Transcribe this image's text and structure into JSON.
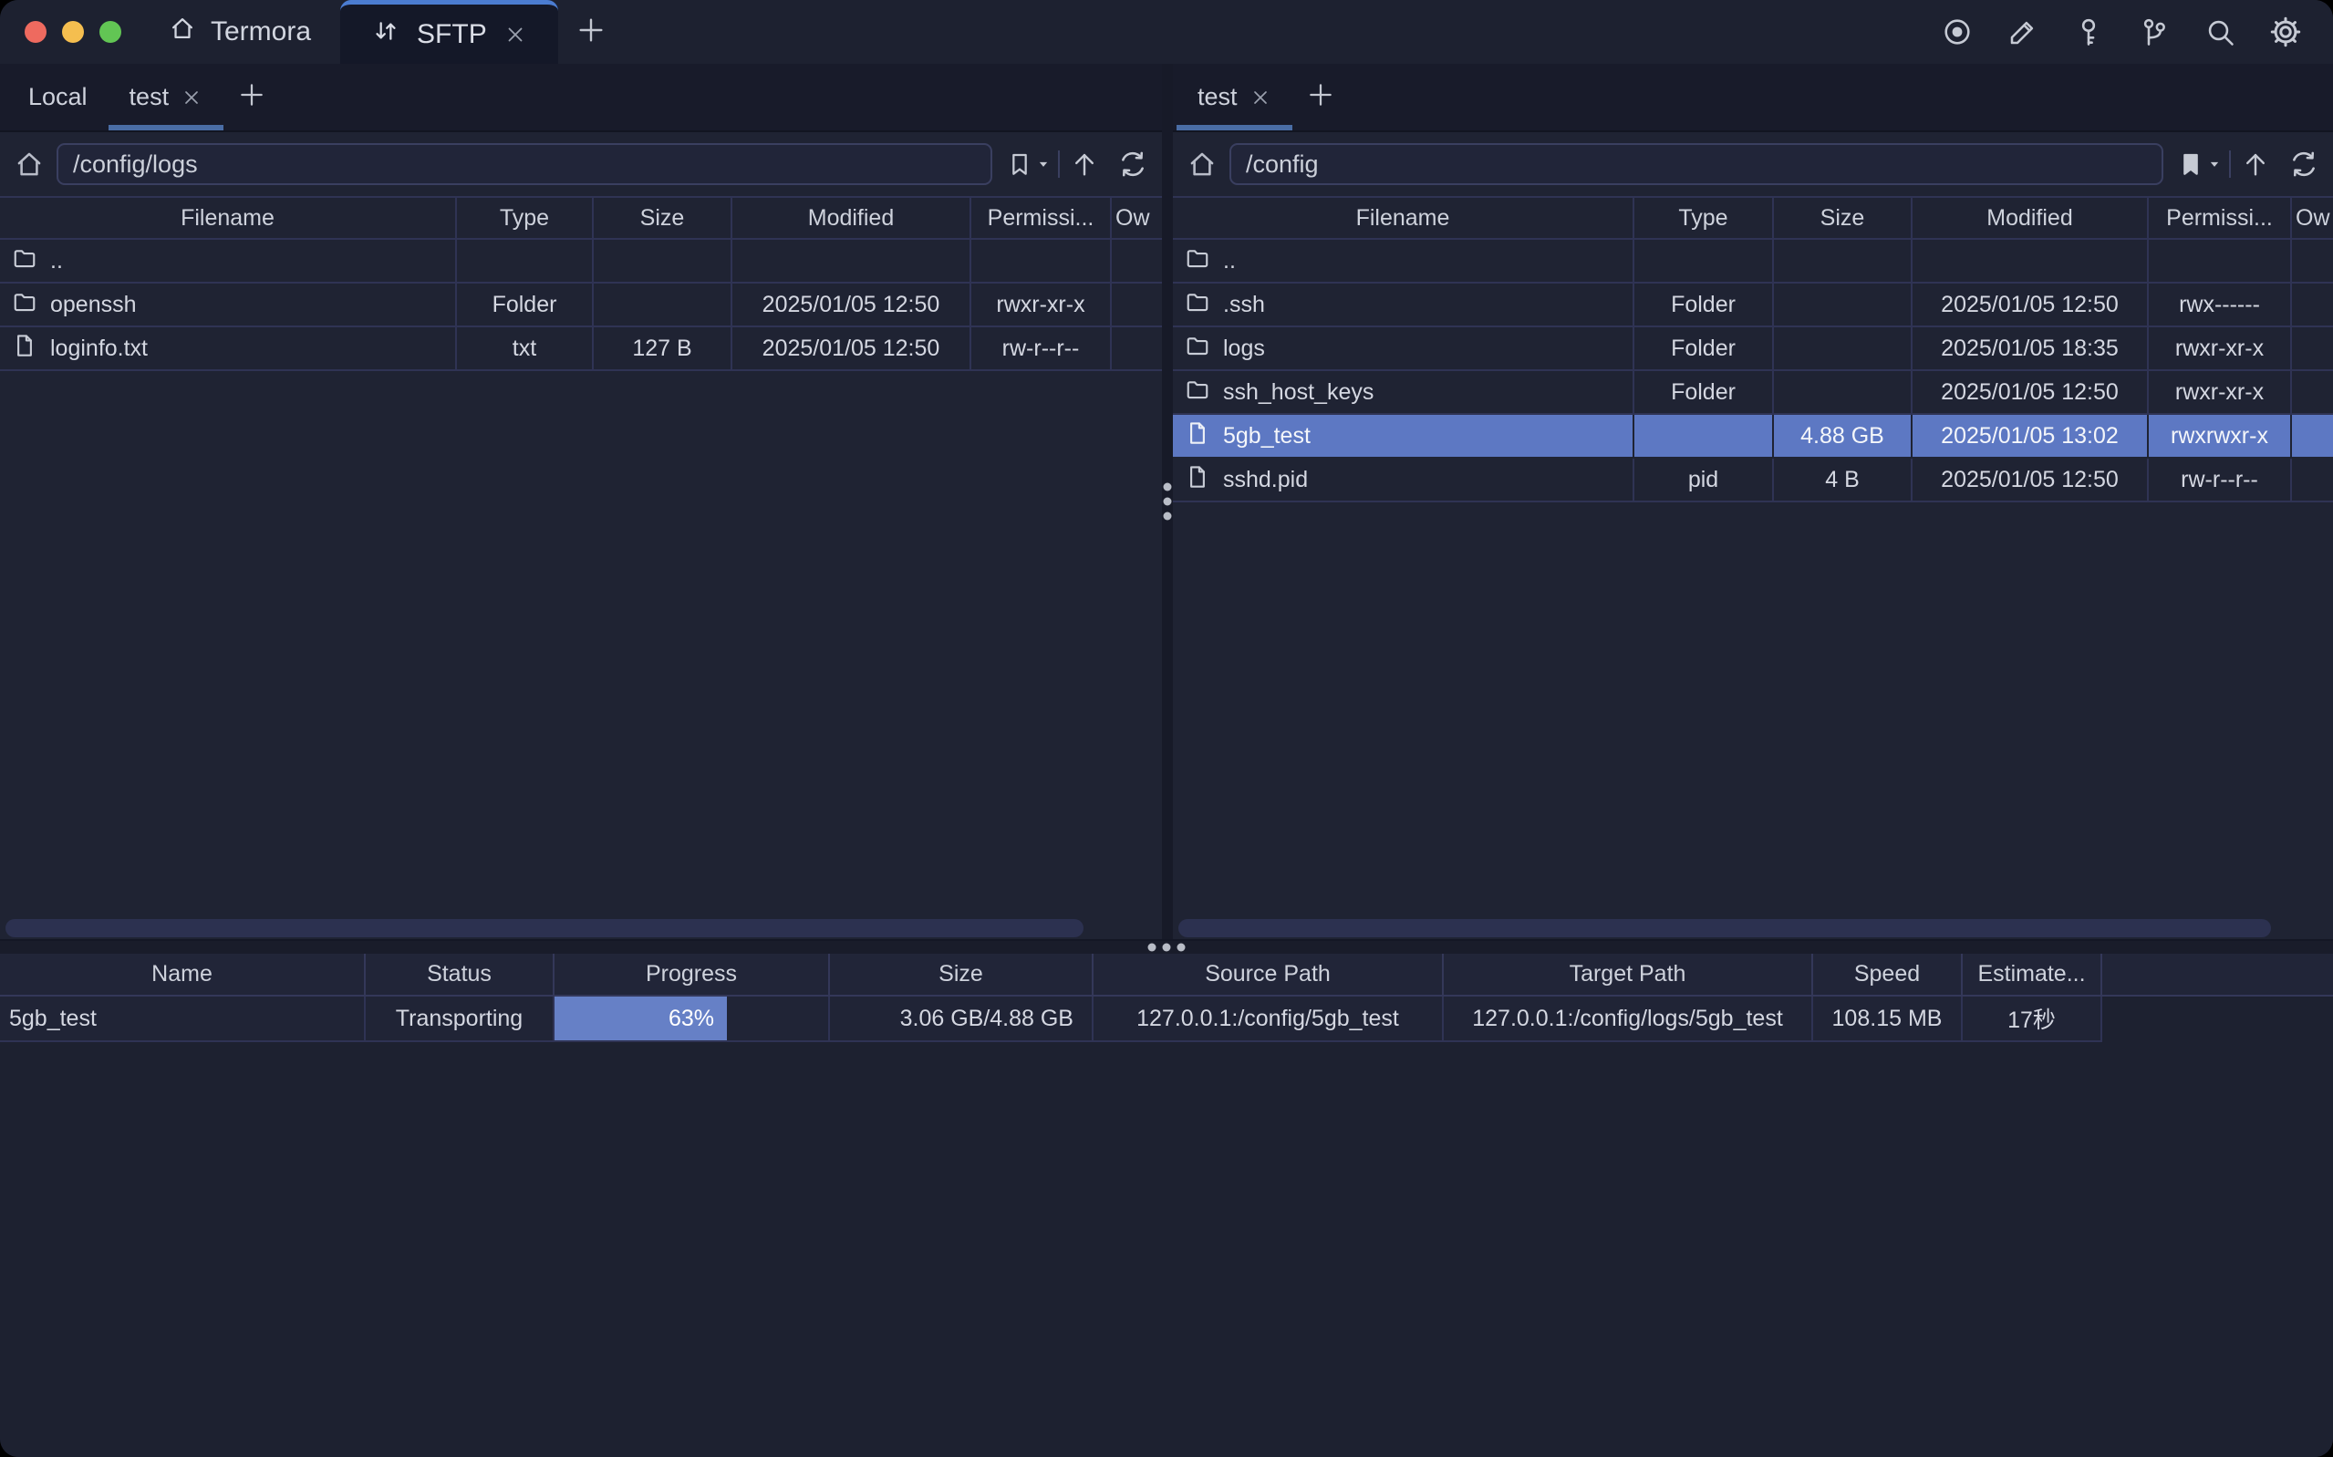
{
  "titlebar": {
    "app_tab_label": "Termora",
    "sftp_tab_label": "SFTP",
    "actions": [
      "record-icon",
      "edit-icon",
      "key-icon",
      "keychain-icon",
      "search-icon",
      "settings-icon"
    ]
  },
  "left_pane": {
    "tabs": [
      {
        "label": "Local",
        "active": false,
        "closable": false
      },
      {
        "label": "test",
        "active": true,
        "closable": true
      }
    ],
    "path": "/config/logs",
    "columns": [
      "Filename",
      "Type",
      "Size",
      "Modified",
      "Permissi...",
      "Ow"
    ],
    "rows": [
      {
        "name": "..",
        "icon": "folder",
        "type": "",
        "size": "",
        "modified": "",
        "permissions": ""
      },
      {
        "name": "openssh",
        "icon": "folder",
        "type": "Folder",
        "size": "",
        "modified": "2025/01/05 12:50",
        "permissions": "rwxr-xr-x"
      },
      {
        "name": "loginfo.txt",
        "icon": "file",
        "type": "txt",
        "size": "127 B",
        "modified": "2025/01/05 12:50",
        "permissions": "rw-r--r--"
      }
    ]
  },
  "right_pane": {
    "tabs": [
      {
        "label": "test",
        "active": true,
        "closable": true
      }
    ],
    "path": "/config",
    "columns": [
      "Filename",
      "Type",
      "Size",
      "Modified",
      "Permissi...",
      "Ow"
    ],
    "rows": [
      {
        "name": "..",
        "icon": "folder",
        "type": "",
        "size": "",
        "modified": "",
        "permissions": ""
      },
      {
        "name": ".ssh",
        "icon": "folder",
        "type": "Folder",
        "size": "",
        "modified": "2025/01/05 12:50",
        "permissions": "rwx------"
      },
      {
        "name": "logs",
        "icon": "folder",
        "type": "Folder",
        "size": "",
        "modified": "2025/01/05 18:35",
        "permissions": "rwxr-xr-x"
      },
      {
        "name": "ssh_host_keys",
        "icon": "folder",
        "type": "Folder",
        "size": "",
        "modified": "2025/01/05 12:50",
        "permissions": "rwxr-xr-x"
      },
      {
        "name": "5gb_test",
        "icon": "file",
        "type": "",
        "size": "4.88 GB",
        "modified": "2025/01/05 13:02",
        "permissions": "rwxrwxr-x",
        "selected": true
      },
      {
        "name": "sshd.pid",
        "icon": "file",
        "type": "pid",
        "size": "4 B",
        "modified": "2025/01/05 12:50",
        "permissions": "rw-r--r--"
      }
    ]
  },
  "transfers": {
    "columns": [
      "Name",
      "Status",
      "Progress",
      "Size",
      "Source Path",
      "Target Path",
      "Speed",
      "Estimate..."
    ],
    "rows": [
      {
        "name": "5gb_test",
        "status": "Transporting",
        "progress_label": "63%",
        "progress_pct": 63,
        "size": "3.06 GB/4.88 GB",
        "source_path": "127.0.0.1:/config/5gb_test",
        "target_path": "127.0.0.1:/config/logs/5gb_test",
        "speed": "108.15 MB",
        "estimate": "17秒"
      }
    ]
  },
  "colors": {
    "accent_tab_top": "#4b7cd1",
    "tab_underline": "#4a6da5",
    "selection_row": "#5d78c3",
    "progress_fill": "#6680c6",
    "traffic_red": "#ee6a5f",
    "traffic_yellow": "#f5be4f",
    "traffic_green": "#62c554"
  }
}
